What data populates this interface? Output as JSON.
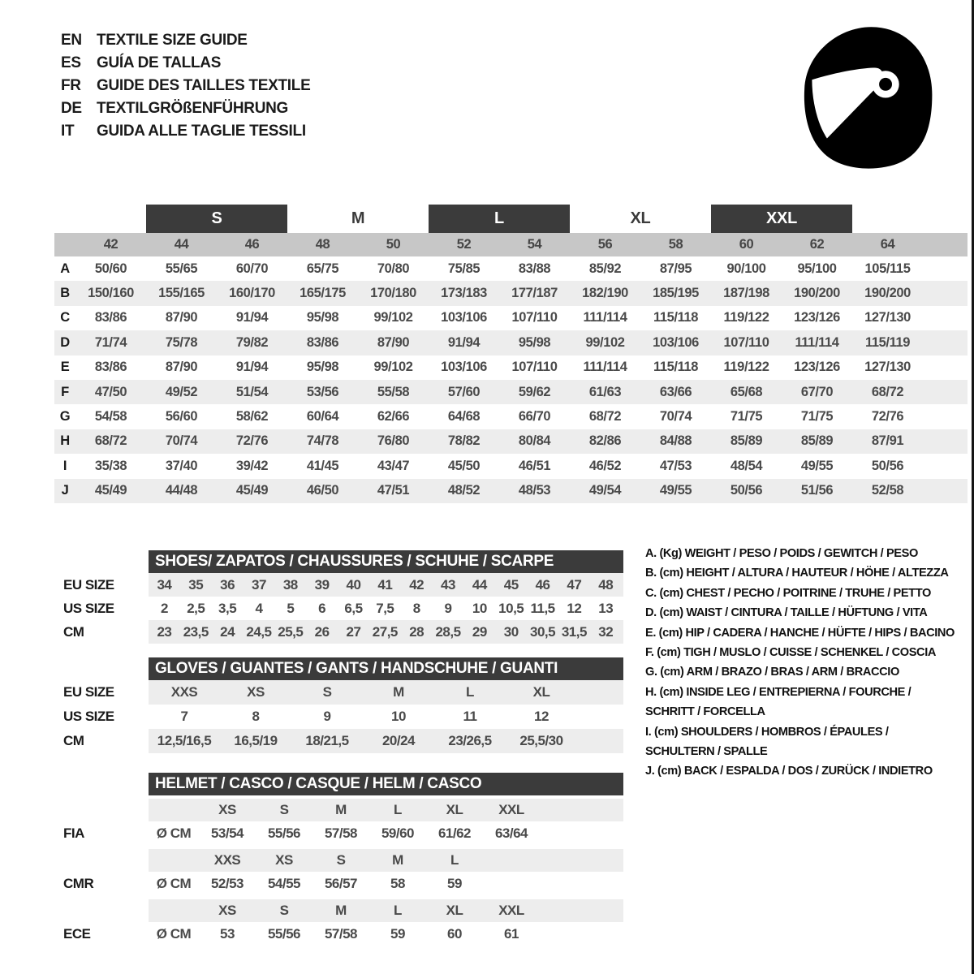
{
  "languages": [
    {
      "code": "EN",
      "title": "TEXTILE SIZE GUIDE"
    },
    {
      "code": "ES",
      "title": "GUÍA DE TALLAS"
    },
    {
      "code": "FR",
      "title": "GUIDE DES TAILLES TEXTILE"
    },
    {
      "code": "DE",
      "title": "TEXTILGRÖßENFÜHRUNG"
    },
    {
      "code": "IT",
      "title": "GUIDA ALLE TAGLIE TESSILI"
    }
  ],
  "icon": {
    "name": "racing-helmet-icon"
  },
  "colors": {
    "dark_bar": "#3b3b3b",
    "columns_row_bg": "#c7c7c7",
    "stripe": "#ededed",
    "value_text": "#4a4a4a",
    "label_text": "#1b1b1b"
  },
  "main_table": {
    "size_labels": [
      "S",
      "M",
      "L",
      "XL",
      "XXL"
    ],
    "columns": [
      "42",
      "44",
      "46",
      "48",
      "50",
      "52",
      "54",
      "56",
      "58",
      "60",
      "62",
      "64"
    ],
    "rows": [
      {
        "label": "A",
        "values": [
          "50/60",
          "55/65",
          "60/70",
          "65/75",
          "70/80",
          "75/85",
          "83/88",
          "85/92",
          "87/95",
          "90/100",
          "95/100",
          "105/115"
        ]
      },
      {
        "label": "B",
        "values": [
          "150/160",
          "155/165",
          "160/170",
          "165/175",
          "170/180",
          "173/183",
          "177/187",
          "182/190",
          "185/195",
          "187/198",
          "190/200",
          "190/200"
        ]
      },
      {
        "label": "C",
        "values": [
          "83/86",
          "87/90",
          "91/94",
          "95/98",
          "99/102",
          "103/106",
          "107/110",
          "111/114",
          "115/118",
          "119/122",
          "123/126",
          "127/130"
        ]
      },
      {
        "label": "D",
        "values": [
          "71/74",
          "75/78",
          "79/82",
          "83/86",
          "87/90",
          "91/94",
          "95/98",
          "99/102",
          "103/106",
          "107/110",
          "111/114",
          "115/119"
        ]
      },
      {
        "label": "E",
        "values": [
          "83/86",
          "87/90",
          "91/94",
          "95/98",
          "99/102",
          "103/106",
          "107/110",
          "111/114",
          "115/118",
          "119/122",
          "123/126",
          "127/130"
        ]
      },
      {
        "label": "F",
        "values": [
          "47/50",
          "49/52",
          "51/54",
          "53/56",
          "55/58",
          "57/60",
          "59/62",
          "61/63",
          "63/66",
          "65/68",
          "67/70",
          "68/72"
        ]
      },
      {
        "label": "G",
        "values": [
          "54/58",
          "56/60",
          "58/62",
          "60/64",
          "62/66",
          "64/68",
          "66/70",
          "68/72",
          "70/74",
          "71/75",
          "71/75",
          "72/76"
        ]
      },
      {
        "label": "H",
        "values": [
          "68/72",
          "70/74",
          "72/76",
          "74/78",
          "76/80",
          "78/82",
          "80/84",
          "82/86",
          "84/88",
          "85/89",
          "85/89",
          "87/91"
        ]
      },
      {
        "label": "I",
        "values": [
          "35/38",
          "37/40",
          "39/42",
          "41/45",
          "43/47",
          "45/50",
          "46/51",
          "46/52",
          "47/53",
          "48/54",
          "49/55",
          "50/56"
        ]
      },
      {
        "label": "J",
        "values": [
          "45/49",
          "44/48",
          "45/49",
          "46/50",
          "47/51",
          "48/52",
          "48/53",
          "49/54",
          "49/55",
          "50/56",
          "51/56",
          "52/58"
        ]
      }
    ]
  },
  "shoes": {
    "title": "SHOES/ ZAPATOS / CHAUSSURES / SCHUHE / SCARPE",
    "rows": [
      {
        "label": "EU SIZE",
        "values": [
          "34",
          "35",
          "36",
          "37",
          "38",
          "39",
          "40",
          "41",
          "42",
          "43",
          "44",
          "45",
          "46",
          "47",
          "48"
        ]
      },
      {
        "label": "US SIZE",
        "values": [
          "2",
          "2,5",
          "3,5",
          "4",
          "5",
          "6",
          "6,5",
          "7,5",
          "8",
          "9",
          "10",
          "10,5",
          "11,5",
          "12",
          "13"
        ]
      },
      {
        "label": "CM",
        "values": [
          "23",
          "23,5",
          "24",
          "24,5",
          "25,5",
          "26",
          "27",
          "27,5",
          "28",
          "28,5",
          "29",
          "30",
          "30,5",
          "31,5",
          "32"
        ]
      }
    ]
  },
  "gloves": {
    "title": "GLOVES / GUANTES / GANTS / HANDSCHUHE / GUANTI",
    "rows": [
      {
        "label": "EU SIZE",
        "values": [
          "XXS",
          "XS",
          "S",
          "M",
          "L",
          "XL"
        ]
      },
      {
        "label": "US SIZE",
        "values": [
          "7",
          "8",
          "9",
          "10",
          "11",
          "12"
        ]
      },
      {
        "label": "CM",
        "values": [
          "12,5/16,5",
          "16,5/19",
          "18/21,5",
          "20/24",
          "23/26,5",
          "25,5/30"
        ]
      }
    ]
  },
  "helmet": {
    "title": "HELMET / CASCO / CASQUE / HELM / CASCO",
    "sections": [
      {
        "label": "FIA",
        "diameter": "Ø CM",
        "sizes": [
          "XS",
          "S",
          "M",
          "L",
          "XL",
          "XXL"
        ],
        "values": [
          "53/54",
          "55/56",
          "57/58",
          "59/60",
          "61/62",
          "63/64"
        ]
      },
      {
        "label": "CMR",
        "diameter": "Ø CM",
        "sizes": [
          "XXS",
          "XS",
          "S",
          "M",
          "L"
        ],
        "values": [
          "52/53",
          "54/55",
          "56/57",
          "58",
          "59"
        ]
      },
      {
        "label": "ECE",
        "diameter": "Ø CM",
        "sizes": [
          "XS",
          "S",
          "M",
          "L",
          "XL",
          "XXL"
        ],
        "values": [
          "53",
          "55/56",
          "57/58",
          "59",
          "60",
          "61"
        ]
      }
    ]
  },
  "legend": {
    "entries": [
      "A. (Kg) WEIGHT / PESO / POIDS / GEWITCH / PESO",
      "B. (cm) HEIGHT / ALTURA / HAUTEUR / HÖHE / ALTEZZA",
      "C. (cm) CHEST / PECHO / POITRINE / TRUHE / PETTO",
      "D. (cm) WAIST / CINTURA / TAILLE / HÜFTUNG / VITA",
      "E. (cm) HIP / CADERA / HANCHE / HÜFTE / HIPS /  BACINO",
      "F. (cm) TIGH / MUSLO / CUISSE / SCHENKEL / COSCIA",
      "G. (cm) ARM  / BRAZO / BRAS / ARM / BRACCIO",
      "H. (cm) INSIDE LEG / ENTREPIERNA / FOURCHE /\nSCHRITT / FORCELLA",
      "I.  (cm) SHOULDERS / HOMBROS / ÉPAULES /\nSCHULTERN / SPALLE",
      "J. (cm) BACK / ESPALDA / DOS / ZURÜCK / INDIETRO"
    ]
  }
}
